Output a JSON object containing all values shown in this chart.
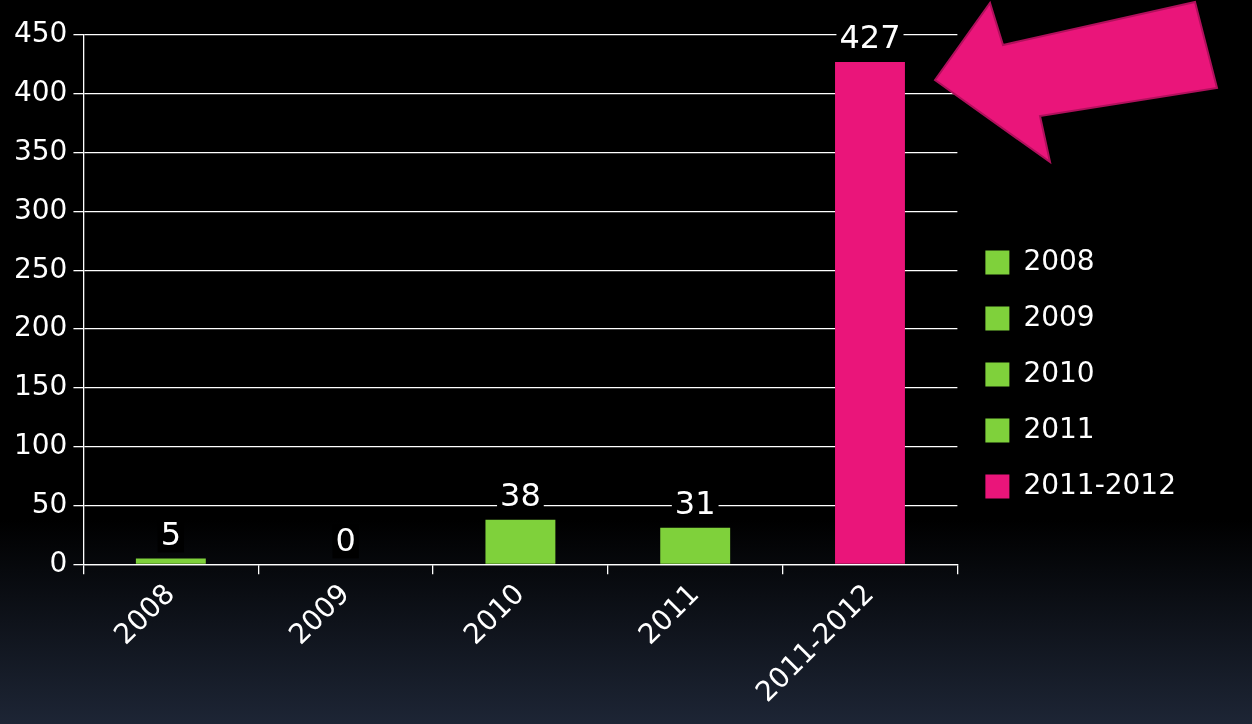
{
  "chart_data": {
    "type": "bar",
    "categories": [
      "2008",
      "2009",
      "2010",
      "2011",
      "2011-2012"
    ],
    "series": [
      {
        "name": "2008",
        "color": "#7fd13b",
        "values": [
          5,
          null,
          null,
          null,
          null
        ]
      },
      {
        "name": "2009",
        "color": "#7fd13b",
        "values": [
          null,
          0,
          null,
          null,
          null
        ]
      },
      {
        "name": "2010",
        "color": "#7fd13b",
        "values": [
          null,
          null,
          38,
          null,
          null
        ]
      },
      {
        "name": "2011",
        "color": "#7fd13b",
        "values": [
          null,
          null,
          null,
          31,
          null
        ]
      },
      {
        "name": "2011-2012",
        "color": "#ea157a",
        "values": [
          null,
          null,
          null,
          null,
          427
        ]
      }
    ],
    "ylim": [
      0,
      450
    ],
    "yticks": [
      0,
      50,
      100,
      150,
      200,
      250,
      300,
      350,
      400,
      450
    ],
    "grid": "y",
    "legend": "right",
    "data_labels": true
  }
}
